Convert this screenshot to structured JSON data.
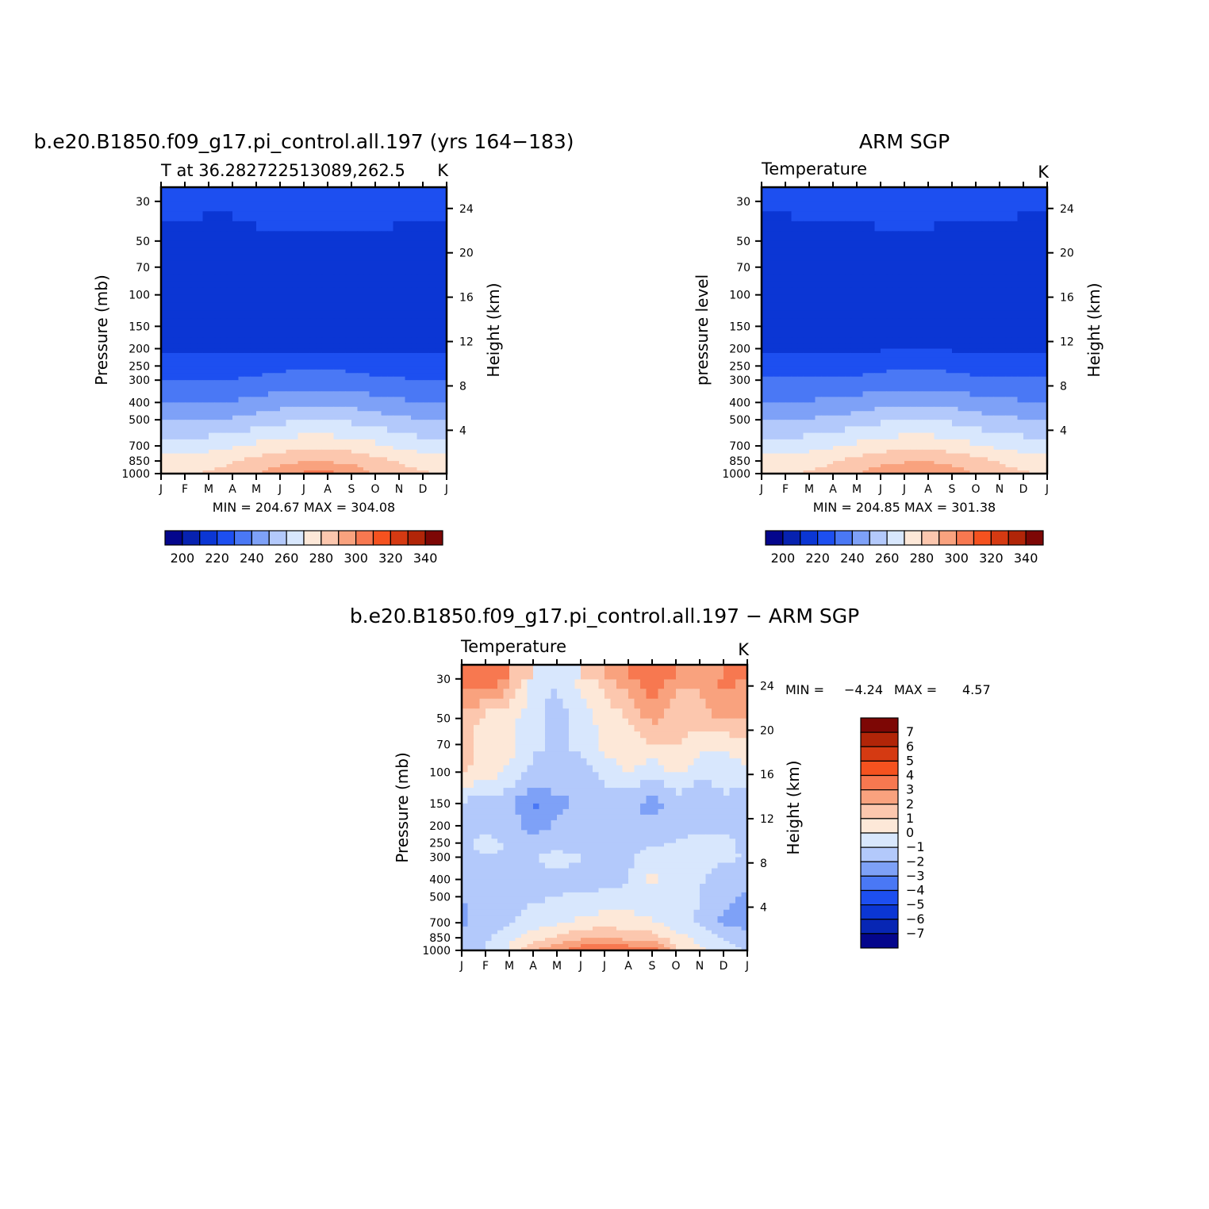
{
  "colors": {
    "abs_palette": [
      "#04068c",
      "#0722b0",
      "#0b36d4",
      "#1d4ff0",
      "#4a78f5",
      "#7ea1f7",
      "#b3c9fb",
      "#d8e7fd",
      "#fde8d8",
      "#fcc7ae",
      "#f9a27e",
      "#f77850",
      "#f5521f",
      "#d53a12",
      "#b12508",
      "#7d0705"
    ],
    "diff_palette": [
      "#04068c",
      "#0726b4",
      "#0b36d4",
      "#1d4ff0",
      "#4a78f5",
      "#7ea1f7",
      "#b3c9fb",
      "#d8e7fd",
      "#fde8d8",
      "#fcc7ae",
      "#f9a27e",
      "#f77850",
      "#f5521f",
      "#d53a12",
      "#b12508",
      "#7d0705"
    ]
  },
  "chart_data": [
    {
      "id": "model",
      "type": "heatmap",
      "title": "b.e20.B1850.f09_g17.pi_control.all.197 (yrs 164−183)",
      "subtitle_left": "T at  36.282722513089,262.5",
      "subtitle_right": "K",
      "ylabel": "Pressure (mb)",
      "y2label": "Height (km)",
      "x_ticks": [
        "J",
        "F",
        "M",
        "A",
        "M",
        "J",
        "J",
        "A",
        "S",
        "O",
        "N",
        "D",
        "J"
      ],
      "y_ticks": [
        30,
        50,
        70,
        100,
        150,
        200,
        250,
        300,
        400,
        500,
        700,
        850,
        1000
      ],
      "y2_ticks": [
        24,
        20,
        16,
        12,
        8,
        4
      ],
      "stats": "MIN = 204.67  MAX = 304.08",
      "min": 204.67,
      "max": 304.08,
      "colorbar_labels": [
        "200",
        "220",
        "240",
        "260",
        "280",
        "300",
        "320",
        "340"
      ],
      "pressure_levels": [
        30,
        50,
        70,
        100,
        150,
        200,
        250,
        300,
        400,
        500,
        700,
        850,
        1000
      ],
      "months": [
        "J",
        "F",
        "M",
        "A",
        "M",
        "J",
        "J",
        "A",
        "S",
        "O",
        "N",
        "D",
        "J"
      ],
      "values": [
        [
          221,
          221,
          221,
          221,
          223,
          224,
          225,
          226,
          225,
          224,
          222,
          221,
          221
        ],
        [
          219,
          219,
          218,
          218,
          218,
          219,
          219,
          219,
          219,
          219,
          218,
          219,
          219
        ],
        [
          217,
          217,
          217,
          214,
          213,
          213,
          213,
          213,
          213,
          213,
          213,
          216,
          217
        ],
        [
          216,
          216,
          216,
          215,
          211,
          211,
          211,
          211,
          211,
          211,
          212,
          216,
          216
        ],
        [
          216,
          216,
          216,
          215,
          212,
          211,
          211,
          211,
          211,
          213,
          215,
          216,
          216
        ],
        [
          217,
          217,
          217,
          217,
          217,
          218,
          218,
          218,
          218,
          218,
          218,
          217,
          217
        ],
        [
          225,
          225,
          225,
          225,
          226,
          227,
          228,
          228,
          227,
          226,
          225,
          225,
          225
        ],
        [
          230,
          230,
          230,
          230,
          232,
          234,
          235,
          235,
          234,
          232,
          231,
          230,
          230
        ],
        [
          240,
          240,
          240,
          241,
          243,
          246,
          247,
          247,
          246,
          244,
          242,
          240,
          240
        ],
        [
          249,
          249,
          250,
          251,
          254,
          257,
          259,
          259,
          258,
          255,
          252,
          250,
          249
        ],
        [
          264,
          264,
          266,
          269,
          272,
          275,
          277,
          277,
          276,
          272,
          268,
          265,
          264
        ],
        [
          274,
          274,
          276,
          279,
          283,
          287,
          289,
          289,
          287,
          283,
          279,
          276,
          274
        ],
        [
          278,
          279,
          281,
          285,
          290,
          296,
          302,
          303,
          297,
          290,
          284,
          281,
          278
        ]
      ]
    },
    {
      "id": "obs",
      "type": "heatmap",
      "title": "ARM SGP",
      "subtitle_left": "Temperature",
      "subtitle_right": "K",
      "ylabel": "pressure level",
      "y2label": "Height (km)",
      "x_ticks": [
        "J",
        "F",
        "M",
        "A",
        "M",
        "J",
        "J",
        "A",
        "S",
        "O",
        "N",
        "D",
        "J"
      ],
      "y_ticks": [
        30,
        50,
        70,
        100,
        150,
        200,
        250,
        300,
        400,
        500,
        700,
        850,
        1000
      ],
      "y2_ticks": [
        24,
        20,
        16,
        12,
        8,
        4
      ],
      "stats": "MIN = 204.85  MAX = 301.38",
      "min": 204.85,
      "max": 301.38,
      "colorbar_labels": [
        "200",
        "220",
        "240",
        "260",
        "280",
        "300",
        "320",
        "340"
      ],
      "pressure_levels": [
        30,
        50,
        70,
        100,
        150,
        200,
        250,
        300,
        400,
        500,
        700,
        850,
        1000
      ],
      "months": [
        "J",
        "F",
        "M",
        "A",
        "M",
        "J",
        "J",
        "A",
        "S",
        "O",
        "N",
        "D",
        "J"
      ],
      "values": [
        [
          221,
          221,
          221,
          221,
          221,
          222,
          223,
          222,
          221,
          221,
          221,
          221,
          221
        ],
        [
          214,
          218,
          219,
          219,
          219,
          219,
          219,
          219,
          219,
          219,
          219,
          218,
          215
        ],
        [
          213,
          213,
          214,
          213,
          212,
          212,
          212,
          212,
          212,
          212,
          212,
          213,
          213
        ],
        [
          215,
          215,
          216,
          216,
          215,
          214,
          213,
          213,
          214,
          215,
          215,
          214,
          215
        ],
        [
          217,
          217,
          217,
          217,
          216,
          214,
          213,
          213,
          213,
          214,
          216,
          217,
          217
        ],
        [
          219,
          219,
          219,
          219,
          219,
          219,
          219,
          219,
          219,
          219,
          219,
          219,
          219
        ],
        [
          225,
          225,
          225,
          225,
          226,
          227,
          228,
          228,
          227,
          226,
          225,
          225,
          225
        ],
        [
          231,
          231,
          231,
          231,
          232,
          234,
          235,
          235,
          234,
          232,
          231,
          231,
          231
        ],
        [
          241,
          241,
          241,
          242,
          244,
          246,
          247,
          247,
          246,
          244,
          242,
          241,
          241
        ],
        [
          250,
          250,
          251,
          252,
          255,
          258,
          259,
          259,
          258,
          255,
          252,
          251,
          250
        ],
        [
          264,
          264,
          266,
          269,
          272,
          275,
          277,
          277,
          275,
          271,
          268,
          265,
          264
        ],
        [
          274,
          274,
          276,
          279,
          283,
          287,
          289,
          289,
          287,
          283,
          279,
          276,
          274
        ],
        [
          278,
          279,
          281,
          285,
          290,
          295,
          299,
          300,
          296,
          290,
          284,
          281,
          278
        ]
      ]
    },
    {
      "id": "diff",
      "type": "heatmap",
      "title": "b.e20.B1850.f09_g17.pi_control.all.197 − ARM SGP",
      "subtitle_left": "Temperature",
      "subtitle_right": "K",
      "ylabel": "Pressure (mb)",
      "y2label": "Height (km)",
      "x_ticks": [
        "J",
        "F",
        "M",
        "A",
        "M",
        "J",
        "J",
        "A",
        "S",
        "O",
        "N",
        "D",
        "J"
      ],
      "y_ticks": [
        30,
        50,
        70,
        100,
        150,
        200,
        250,
        300,
        400,
        500,
        700,
        850,
        1000
      ],
      "y2_ticks": [
        24,
        20,
        16,
        12,
        8,
        4
      ],
      "stats_min_label": "MIN =",
      "stats_min": "−4.24",
      "stats_max_label": "MAX =",
      "stats_max": "4.57",
      "min": -4.24,
      "max": 4.57,
      "colorbar_labels": [
        "7",
        "6",
        "5",
        "4",
        "3",
        "2",
        "1",
        "0",
        "−1",
        "−2",
        "−3",
        "−4",
        "−5",
        "−6",
        "−7"
      ],
      "pressure_levels": [
        30,
        50,
        70,
        100,
        150,
        200,
        250,
        300,
        400,
        500,
        700,
        850,
        1000
      ],
      "months": [
        "J",
        "F",
        "M",
        "A",
        "M",
        "J",
        "J",
        "A",
        "S",
        "O",
        "N",
        "D",
        "J"
      ],
      "values": [
        [
          3.2,
          4.2,
          2.5,
          -0.5,
          -0.8,
          0.5,
          1.5,
          2.6,
          3.8,
          2.4,
          2.2,
          3.3,
          3.0
        ],
        [
          1.8,
          0.6,
          0.3,
          -0.6,
          -1.6,
          -0.5,
          0.4,
          1.0,
          2.3,
          1.1,
          1.6,
          2.1,
          2.0
        ],
        [
          1.6,
          0.4,
          0.4,
          -0.8,
          -1.2,
          -0.8,
          0.3,
          0.4,
          1.0,
          1.1,
          0.4,
          0.3,
          0.5
        ],
        [
          1.2,
          0.5,
          -0.2,
          -1.3,
          -1.1,
          -1.4,
          -0.6,
          0.1,
          -0.8,
          0.3,
          -0.8,
          -0.6,
          -0.2
        ],
        [
          -1.2,
          -1.5,
          -1.6,
          -3.2,
          -2.4,
          -1.8,
          -1.8,
          -1.7,
          -2.5,
          -1.6,
          -1.7,
          -1.2,
          -1.6
        ],
        [
          -1.2,
          -1.3,
          -1.4,
          -2.6,
          -1.8,
          -1.5,
          -1.9,
          -1.8,
          -1.6,
          -1.6,
          -1.4,
          -1.2,
          -1.3
        ],
        [
          -1.4,
          -0.6,
          -1.2,
          -1.3,
          -1.6,
          -1.4,
          -1.5,
          -1.3,
          -1.2,
          -0.9,
          -0.5,
          -0.8,
          -1.2
        ],
        [
          -1.2,
          -1.1,
          -1.0,
          -1.2,
          -0.5,
          -1.0,
          -1.1,
          -1.2,
          -0.3,
          -0.7,
          -0.8,
          -0.8,
          -1.1
        ],
        [
          -1.5,
          -1.4,
          -1.2,
          -1.2,
          -1.3,
          -1.4,
          -1.3,
          -1.1,
          0.3,
          -0.8,
          -0.9,
          -1.4,
          -1.6
        ],
        [
          -2.0,
          -1.6,
          -1.3,
          -1.2,
          -1.0,
          -0.8,
          -0.8,
          -0.7,
          -0.9,
          -0.8,
          -1.0,
          -1.8,
          -2.2
        ],
        [
          -2.2,
          -1.7,
          -1.1,
          -0.5,
          -0.2,
          0.2,
          0.6,
          0.5,
          0.2,
          -0.6,
          -1.1,
          -2.2,
          -2.3
        ],
        [
          -1.4,
          -1.2,
          -0.3,
          0.6,
          1.2,
          1.8,
          2.0,
          1.6,
          1.5,
          0.5,
          -0.4,
          -1.1,
          -1.6
        ],
        [
          -1.5,
          -1.0,
          0.2,
          1.8,
          2.8,
          3.9,
          4.2,
          3.8,
          3.9,
          1.2,
          0.2,
          -0.4,
          -1.0
        ]
      ]
    }
  ]
}
